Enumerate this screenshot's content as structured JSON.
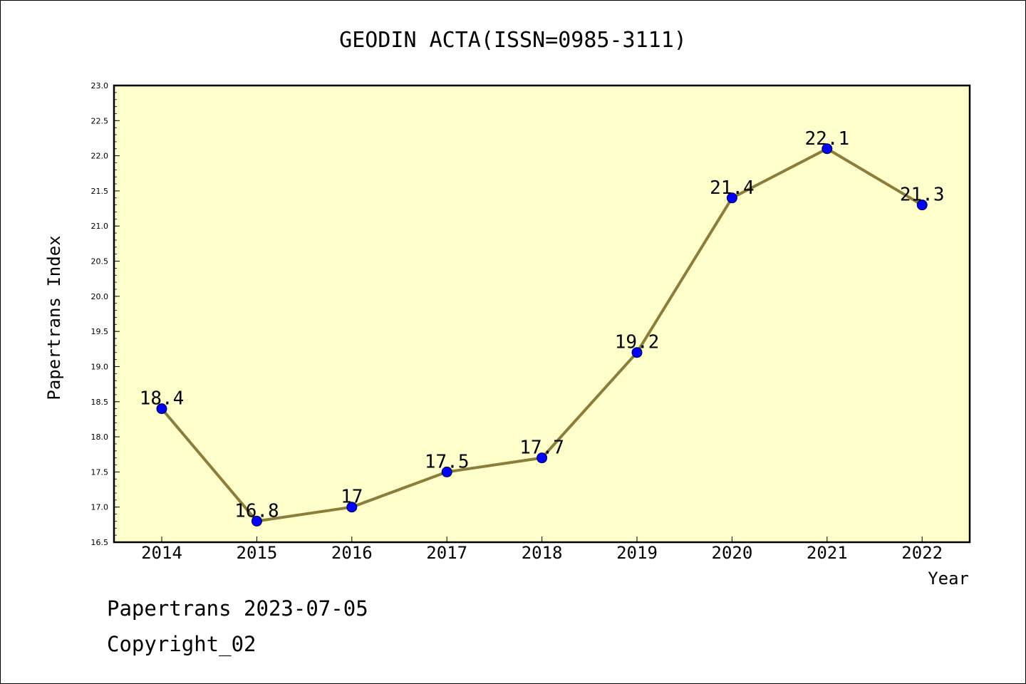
{
  "chart_data": {
    "type": "line",
    "title": "GEODIN ACTA(ISSN=0985-3111)",
    "xlabel": "Year",
    "ylabel": "Papertrans Index",
    "categories": [
      "2014",
      "2015",
      "2016",
      "2017",
      "2018",
      "2019",
      "2020",
      "2021",
      "2022"
    ],
    "series": [
      {
        "values": [
          18.4,
          16.8,
          17,
          17.5,
          17.7,
          19.2,
          21.4,
          22.1,
          21.3
        ],
        "data_labels": [
          "18.4",
          "16.8",
          "17",
          "17.5",
          "17.7",
          "19.2",
          "21.4",
          "22.1",
          "21.3"
        ]
      }
    ],
    "ylim": [
      16.5,
      23.0
    ],
    "yticks": [
      "16.5",
      "17.0",
      "17.5",
      "18.0",
      "18.5",
      "19.0",
      "19.5",
      "20.0",
      "20.5",
      "21.0",
      "21.5",
      "22.0",
      "22.5",
      "23.0"
    ],
    "grid": false,
    "legend": "none",
    "colors": {
      "plot_background": "#ffffcc",
      "line": "#8b7d3a",
      "marker": "#0000ff"
    }
  },
  "footer": {
    "line1": "Papertrans 2023-07-05",
    "line2": "Copyright_02"
  }
}
